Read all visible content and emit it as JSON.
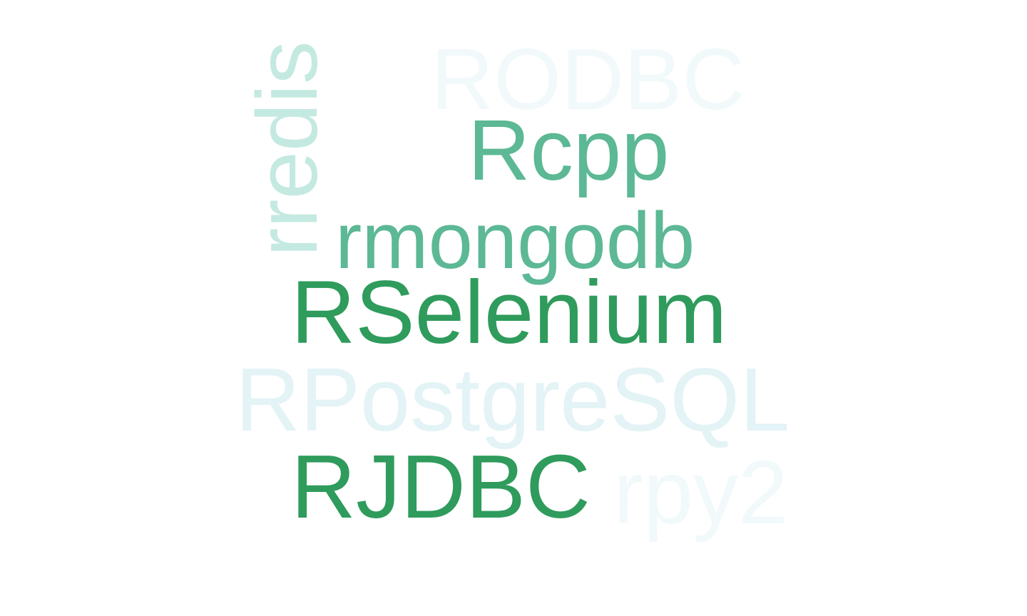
{
  "words": {
    "rodbc": {
      "text": "RODBC",
      "color": "#f1f9fb"
    },
    "rcpp": {
      "text": "Rcpp",
      "color": "#5cb895"
    },
    "rmongodb": {
      "text": "rmongodb",
      "color": "#5cb895"
    },
    "rselenium": {
      "text": "RSelenium",
      "color": "#2f9b5c"
    },
    "rpostgresql": {
      "text": "RPostgreSQL",
      "color": "#e3f3f6"
    },
    "rjdbc": {
      "text": "RJDBC",
      "color": "#2f9b5c"
    },
    "rpy2": {
      "text": "rpy2",
      "color": "#f1f9fb"
    },
    "rredis": {
      "text": "rredis",
      "color": "#c4e9e1",
      "orientation": "vertical"
    }
  }
}
